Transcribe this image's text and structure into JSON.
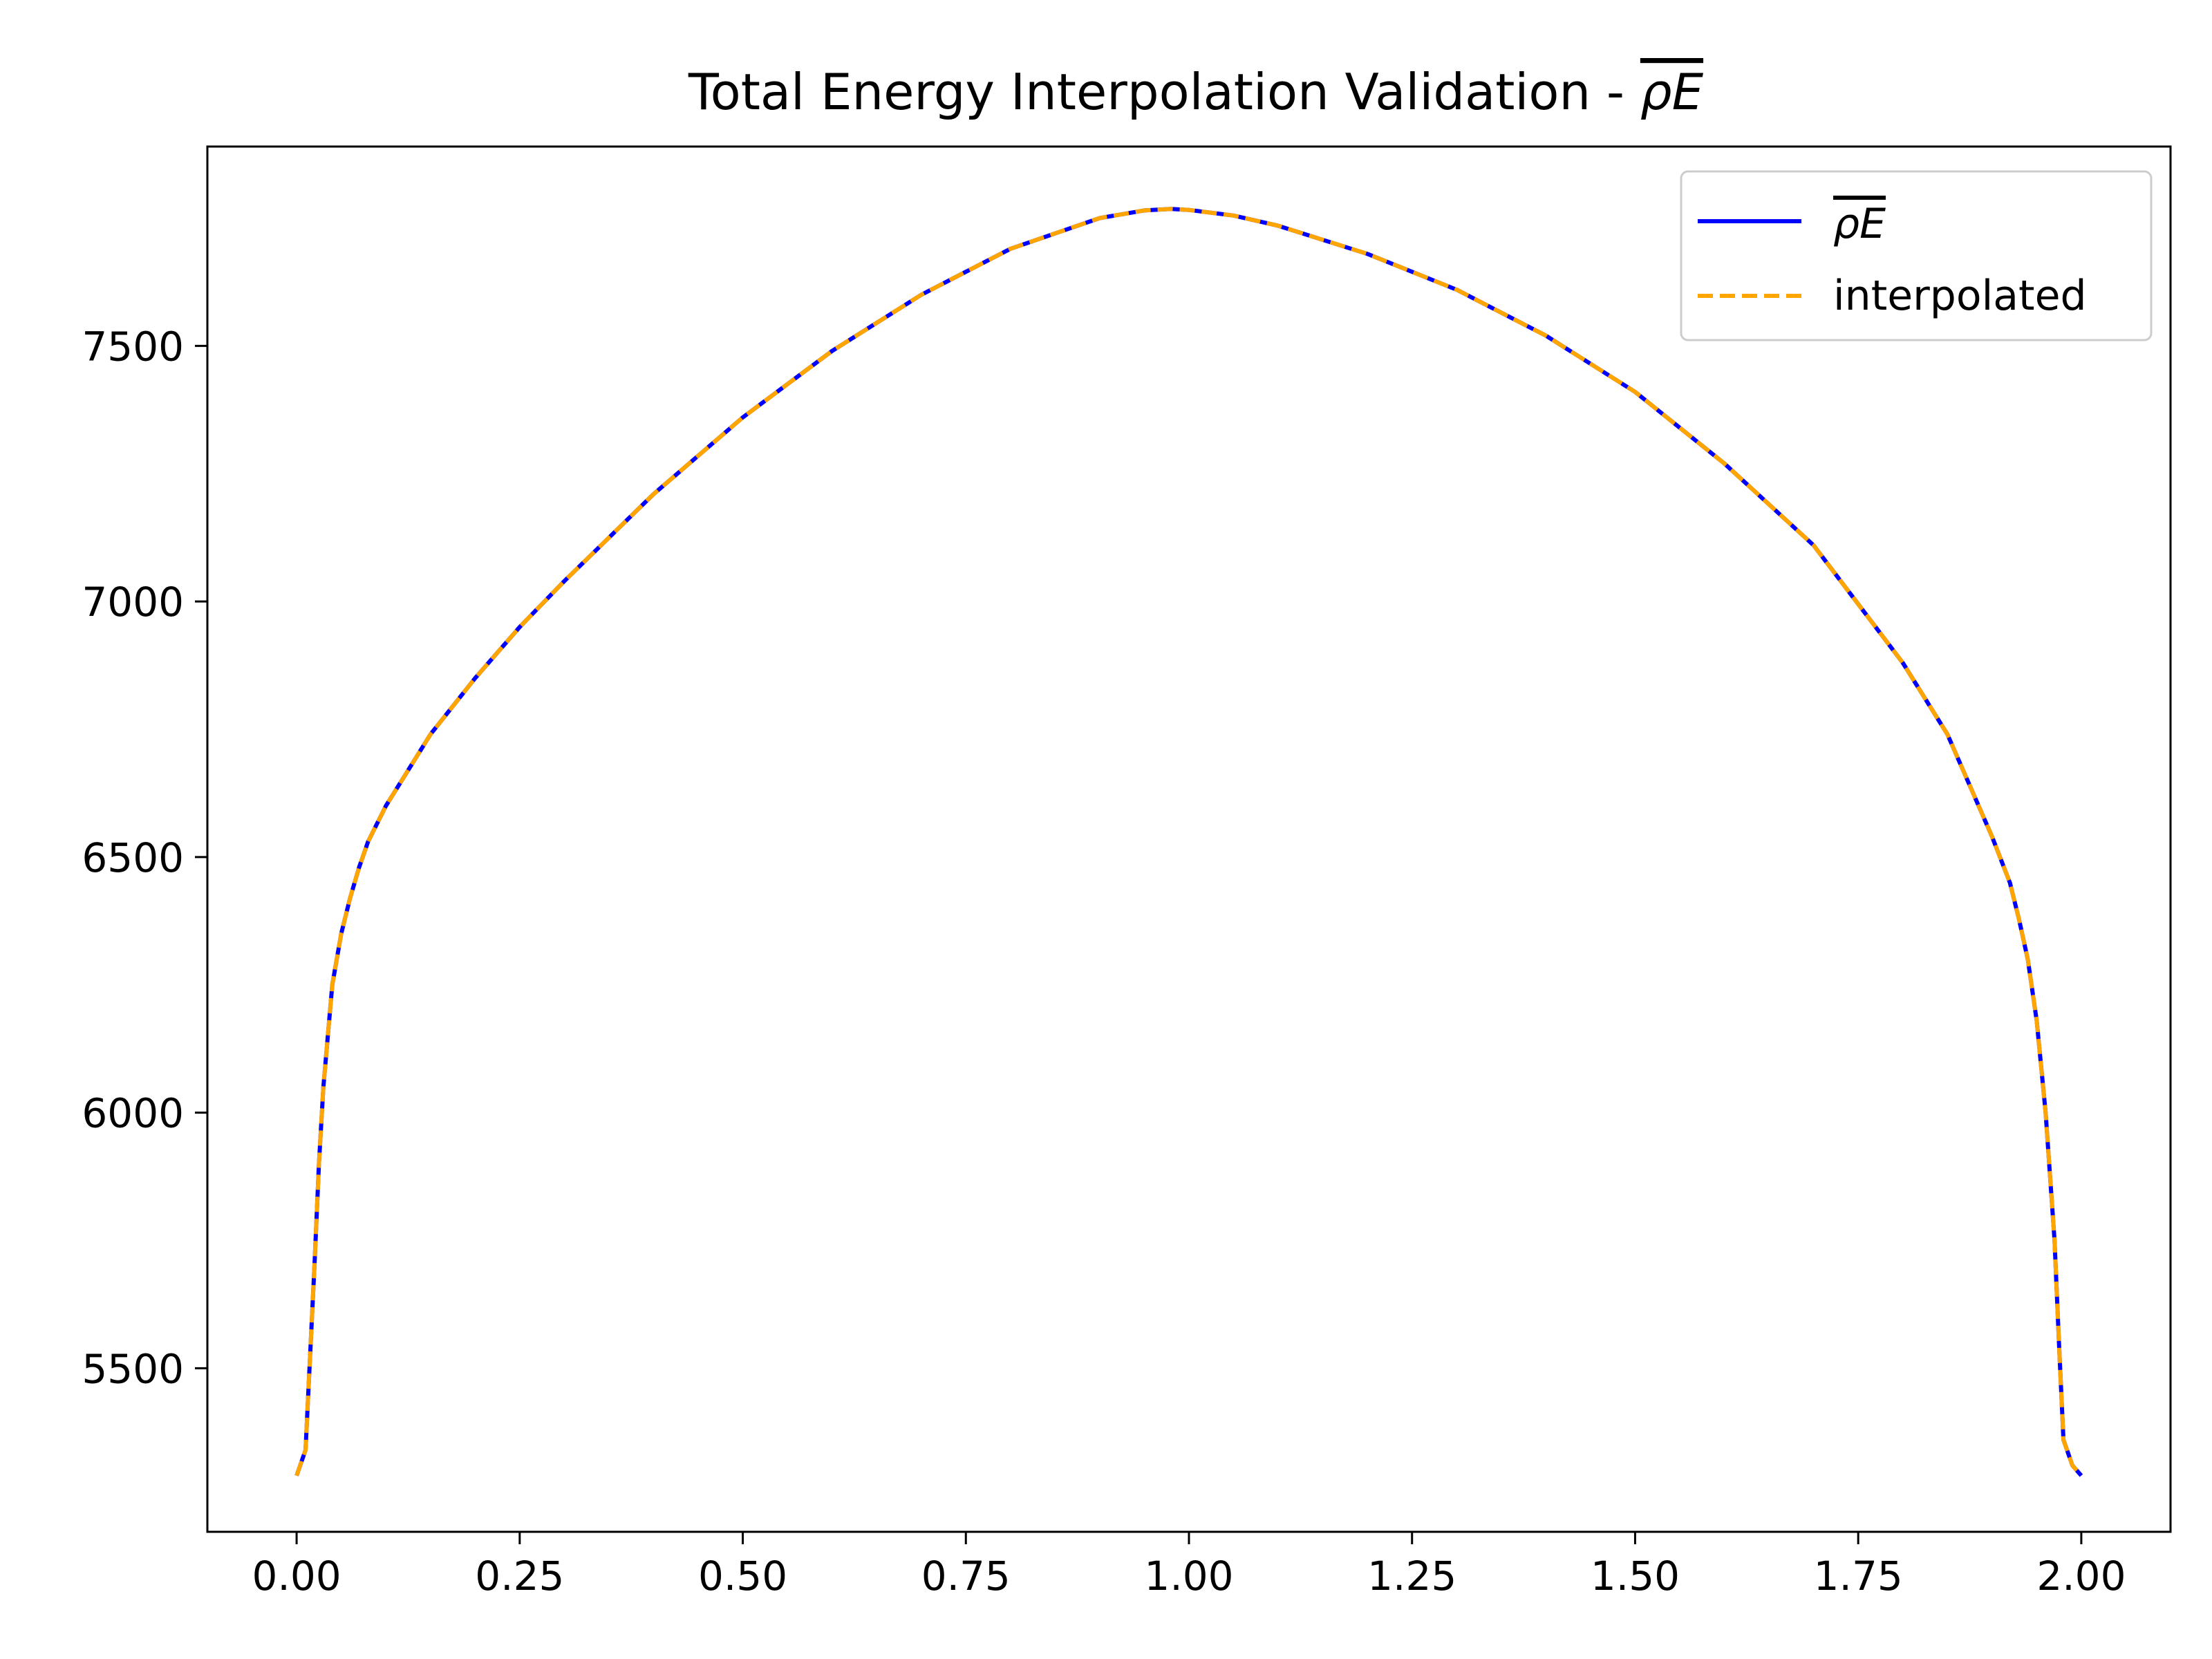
{
  "chart_data": {
    "type": "line",
    "title_prefix": "Total Energy Interpolation Validation - ",
    "title_symbol": "ρE",
    "xlabel": "",
    "ylabel": "",
    "xlim": [
      -0.1,
      2.1
    ],
    "ylim": [
      5180,
      7890
    ],
    "x_ticks": [
      0.0,
      0.25,
      0.5,
      0.75,
      1.0,
      1.25,
      1.5,
      1.75,
      2.0
    ],
    "x_tick_labels": [
      "0.00",
      "0.25",
      "0.50",
      "0.75",
      "1.00",
      "1.25",
      "1.50",
      "1.75",
      "2.00"
    ],
    "y_ticks": [
      5500,
      6000,
      6500,
      7000,
      7500
    ],
    "y_tick_labels": [
      "5500",
      "6000",
      "6500",
      "7000",
      "7500"
    ],
    "grid": false,
    "legend_position": "top-right",
    "x": [
      0.0,
      0.01,
      0.02,
      0.025,
      0.03,
      0.04,
      0.05,
      0.06,
      0.07,
      0.08,
      0.1,
      0.125,
      0.15,
      0.2,
      0.25,
      0.3,
      0.4,
      0.5,
      0.6,
      0.7,
      0.8,
      0.9,
      0.95,
      0.98,
      1.0,
      1.05,
      1.1,
      1.2,
      1.3,
      1.4,
      1.5,
      1.6,
      1.7,
      1.8,
      1.85,
      1.9,
      1.92,
      1.93,
      1.94,
      1.95,
      1.96,
      1.97,
      1.975,
      1.98,
      1.99,
      2.0
    ],
    "series": [
      {
        "name": "ρE",
        "color": "#0000ff",
        "style": "solid",
        "values": [
          5290,
          5340,
          5700,
          5900,
          6050,
          6250,
          6350,
          6420,
          6480,
          6530,
          6600,
          6670,
          6740,
          6850,
          6950,
          7040,
          7210,
          7360,
          7490,
          7600,
          7690,
          7750,
          7765,
          7768,
          7766,
          7755,
          7735,
          7680,
          7610,
          7520,
          7410,
          7270,
          7110,
          6880,
          6740,
          6540,
          6450,
          6380,
          6300,
          6180,
          6000,
          5750,
          5550,
          5360,
          5310,
          5290
        ]
      },
      {
        "name": "interpolated",
        "color": "#ffa500",
        "style": "dashed",
        "values": [
          5290,
          5340,
          5700,
          5900,
          6050,
          6250,
          6350,
          6420,
          6480,
          6530,
          6600,
          6670,
          6740,
          6850,
          6950,
          7040,
          7210,
          7360,
          7490,
          7600,
          7690,
          7750,
          7765,
          7768,
          7766,
          7755,
          7735,
          7680,
          7610,
          7520,
          7410,
          7270,
          7110,
          6880,
          6740,
          6540,
          6450,
          6380,
          6300,
          6180,
          6000,
          5750,
          5550,
          5360,
          5310,
          5290
        ]
      }
    ]
  }
}
